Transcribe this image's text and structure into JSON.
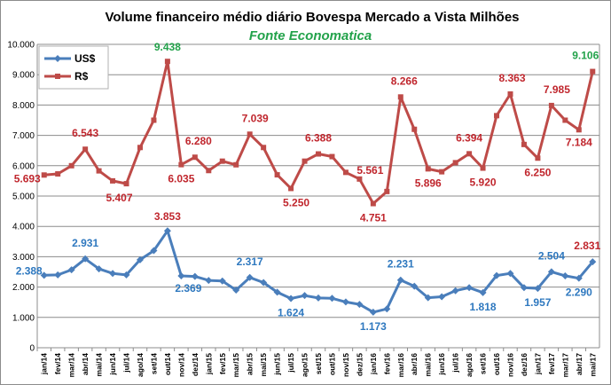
{
  "chart_data": {
    "type": "line",
    "title": "Volume financeiro médio diário Bovespa Mercado a Vista  Milhões",
    "subtitle": "Fonte Economatica",
    "ylim": [
      0,
      10000
    ],
    "yticks": [
      "0",
      "1.000",
      "2.000",
      "3.000",
      "4.000",
      "5.000",
      "6.000",
      "7.000",
      "8.000",
      "9.000",
      "10.000"
    ],
    "grid": true,
    "legend_position": "top-left",
    "x": [
      "jan/14",
      "fev/14",
      "mar/14",
      "abr/14",
      "mai/14",
      "jun/14",
      "jul/14",
      "ago/14",
      "set/14",
      "out/14",
      "nov/14",
      "dez/14",
      "jan/15",
      "fev/15",
      "mar/15",
      "abr/15",
      "mai/15",
      "jun/15",
      "jul/15",
      "ago/15",
      "set/15",
      "out/15",
      "nov/15",
      "dez/15",
      "jan/16",
      "fev/16",
      "mar/16",
      "abr/16",
      "mai/16",
      "jun/16",
      "jul/16",
      "ago/16",
      "set/16",
      "out/16",
      "nov/16",
      "dez/16",
      "jan/17",
      "fev/17",
      "mar/17",
      "abr/17",
      "mai/17"
    ],
    "series": [
      {
        "name": "US$",
        "color": "#4a7ebb",
        "marker": "diamond",
        "values": [
          2388,
          2400,
          2570,
          2931,
          2600,
          2450,
          2400,
          2900,
          3200,
          3853,
          2369,
          2350,
          2220,
          2200,
          1900,
          2317,
          2150,
          1830,
          1624,
          1720,
          1640,
          1630,
          1510,
          1430,
          1173,
          1280,
          2231,
          2030,
          1650,
          1680,
          1880,
          1980,
          1818,
          2380,
          2450,
          1980,
          1957,
          2504,
          2370,
          2290,
          2831
        ],
        "labels": [
          {
            "i": 0,
            "text": "2.388"
          },
          {
            "i": 3,
            "text": "2.931"
          },
          {
            "i": 9,
            "text": "3.853"
          },
          {
            "i": 10,
            "text": "2.369"
          },
          {
            "i": 15,
            "text": "2.317"
          },
          {
            "i": 18,
            "text": "1.624"
          },
          {
            "i": 24,
            "text": "1.173"
          },
          {
            "i": 26,
            "text": "2.231"
          },
          {
            "i": 32,
            "text": "1.818"
          },
          {
            "i": 36,
            "text": "1.957"
          },
          {
            "i": 37,
            "text": "2.504"
          },
          {
            "i": 39,
            "text": "2.290"
          },
          {
            "i": 40,
            "text": "2.831"
          }
        ]
      },
      {
        "name": "R$",
        "color": "#be4b48",
        "marker": "square",
        "values": [
          5693,
          5730,
          6000,
          6543,
          5830,
          5500,
          5407,
          6600,
          7500,
          9438,
          6035,
          6280,
          5840,
          6150,
          6030,
          7039,
          6600,
          5700,
          5250,
          6150,
          6388,
          6300,
          5780,
          5561,
          4751,
          5150,
          8266,
          7200,
          5896,
          5800,
          6100,
          6394,
          5920,
          7650,
          8363,
          6700,
          6250,
          7985,
          7500,
          7184,
          9106
        ],
        "labels": [
          {
            "i": 0,
            "text": "5.693"
          },
          {
            "i": 3,
            "text": "6.543"
          },
          {
            "i": 6,
            "text": "5.407"
          },
          {
            "i": 9,
            "text": "9.438"
          },
          {
            "i": 10,
            "text": "6.035"
          },
          {
            "i": 11,
            "text": "6.280"
          },
          {
            "i": 15,
            "text": "7.039"
          },
          {
            "i": 18,
            "text": "5.250"
          },
          {
            "i": 20,
            "text": "6.388"
          },
          {
            "i": 23,
            "text": "5.561"
          },
          {
            "i": 24,
            "text": "4.751"
          },
          {
            "i": 26,
            "text": "8.266"
          },
          {
            "i": 28,
            "text": "5.896"
          },
          {
            "i": 31,
            "text": "6.394"
          },
          {
            "i": 32,
            "text": "5.920"
          },
          {
            "i": 34,
            "text": "8.363"
          },
          {
            "i": 36,
            "text": "6.250"
          },
          {
            "i": 37,
            "text": "7.985"
          },
          {
            "i": 39,
            "text": "7.184"
          },
          {
            "i": 40,
            "text": "9.106"
          }
        ]
      }
    ]
  }
}
